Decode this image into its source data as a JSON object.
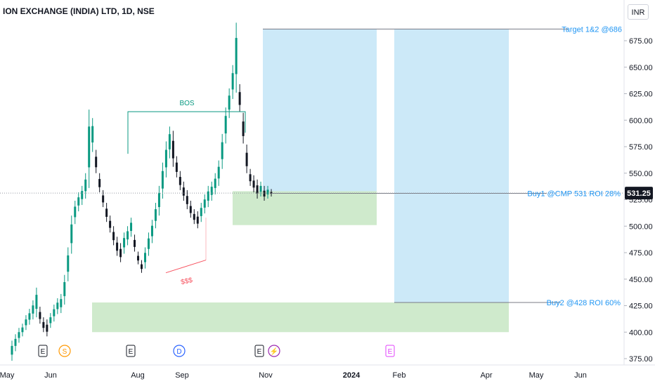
{
  "header": {
    "symbol_title": "ION EXCHANGE (INDIA) LTD, 1D, NSE",
    "currency": "INR"
  },
  "chart_data": {
    "type": "candlestick",
    "current_price": "531.25",
    "y_ticks": [
      "375.00",
      "400.00",
      "425.00",
      "450.00",
      "475.00",
      "500.00",
      "525.00",
      "550.00",
      "575.00",
      "600.00",
      "625.00",
      "650.00",
      "675.00"
    ],
    "y_tick_values": [
      375,
      400,
      425,
      450,
      475,
      500,
      525,
      550,
      575,
      600,
      625,
      650,
      675
    ],
    "x_ticks": [
      "May",
      "Jun",
      "Aug",
      "Sep",
      "Nov",
      "2024",
      "Feb",
      "Apr",
      "May",
      "Jun"
    ],
    "annotations": {
      "bos": "BOS",
      "sss": "$$$",
      "target": "Target 1&2 @686",
      "buy1": "Buy1 @CMP 531 ROI 28%",
      "buy2": "Buy2 @428 ROI 60%"
    },
    "levels": {
      "target": 686,
      "buy1": 531,
      "buy2": 428,
      "bos": 608,
      "current": 531.25
    },
    "zones": [
      {
        "kind": "target",
        "x_start": "late Oct 2023",
        "x_end": "mid Jan 2024",
        "y": [
          531,
          686
        ]
      },
      {
        "kind": "target",
        "x_start": "late Jan 2024",
        "x_end": "mid Apr 2024",
        "y": [
          428,
          686
        ]
      },
      {
        "kind": "demand",
        "x_start": "late Oct 2023",
        "x_end": "mid Jan 2024",
        "y": [
          501,
          533
        ]
      },
      {
        "kind": "demand",
        "x_start": "mid Jul 2023",
        "x_end": "mid Apr 2024",
        "y": [
          400,
          428
        ]
      }
    ],
    "event_markers": [
      {
        "label": "E",
        "kind": "earnings"
      },
      {
        "label": "S",
        "kind": "split"
      },
      {
        "label": "E",
        "kind": "earnings"
      },
      {
        "label": "D",
        "kind": "dividend"
      },
      {
        "label": "E",
        "kind": "earnings"
      },
      {
        "label": "⚡",
        "kind": "news"
      },
      {
        "label": "E",
        "kind": "earnings-upcoming"
      }
    ],
    "price_path": [
      [
        375,
        390
      ],
      [
        384,
        396
      ],
      [
        392,
        402
      ],
      [
        398,
        406
      ],
      [
        404,
        414
      ],
      [
        409,
        420
      ],
      [
        414,
        428
      ],
      [
        416,
        440
      ],
      [
        410,
        422
      ],
      [
        402,
        412
      ],
      [
        398,
        410
      ],
      [
        406,
        416
      ],
      [
        412,
        424
      ],
      [
        419,
        430
      ],
      [
        420,
        434
      ],
      [
        428,
        452
      ],
      [
        450,
        478
      ],
      [
        476,
        508
      ],
      [
        504,
        522
      ],
      [
        516,
        530
      ],
      [
        522,
        536
      ],
      [
        528,
        548
      ],
      [
        538,
        608
      ],
      [
        572,
        600
      ],
      [
        552,
        570
      ],
      [
        534,
        548
      ],
      [
        520,
        532
      ],
      [
        506,
        520
      ],
      [
        496,
        508
      ],
      [
        484,
        498
      ],
      [
        474,
        488
      ],
      [
        468,
        482
      ],
      [
        476,
        492
      ],
      [
        484,
        498
      ],
      [
        492,
        506
      ],
      [
        478,
        490
      ],
      [
        466,
        474
      ],
      [
        458,
        466
      ],
      [
        462,
        478
      ],
      [
        474,
        492
      ],
      [
        486,
        504
      ],
      [
        500,
        520
      ],
      [
        512,
        536
      ],
      [
        528,
        558
      ],
      [
        548,
        578
      ],
      [
        566,
        592
      ],
      [
        558,
        588
      ],
      [
        548,
        564
      ],
      [
        536,
        550
      ],
      [
        526,
        540
      ],
      [
        518,
        532
      ],
      [
        510,
        522
      ],
      [
        504,
        514
      ],
      [
        500,
        512
      ],
      [
        506,
        520
      ],
      [
        514,
        528
      ],
      [
        520,
        536
      ],
      [
        526,
        540
      ],
      [
        532,
        548
      ],
      [
        540,
        560
      ],
      [
        556,
        585
      ],
      [
        580,
        610
      ],
      [
        604,
        628
      ],
      [
        622,
        650
      ],
      [
        628,
        690
      ],
      [
        610,
        632
      ],
      [
        580,
        605
      ],
      [
        552,
        575
      ],
      [
        540,
        552
      ],
      [
        534,
        546
      ],
      [
        528,
        542
      ],
      [
        530,
        540
      ],
      [
        526,
        536
      ],
      [
        528,
        536
      ],
      [
        530,
        533
      ]
    ]
  }
}
